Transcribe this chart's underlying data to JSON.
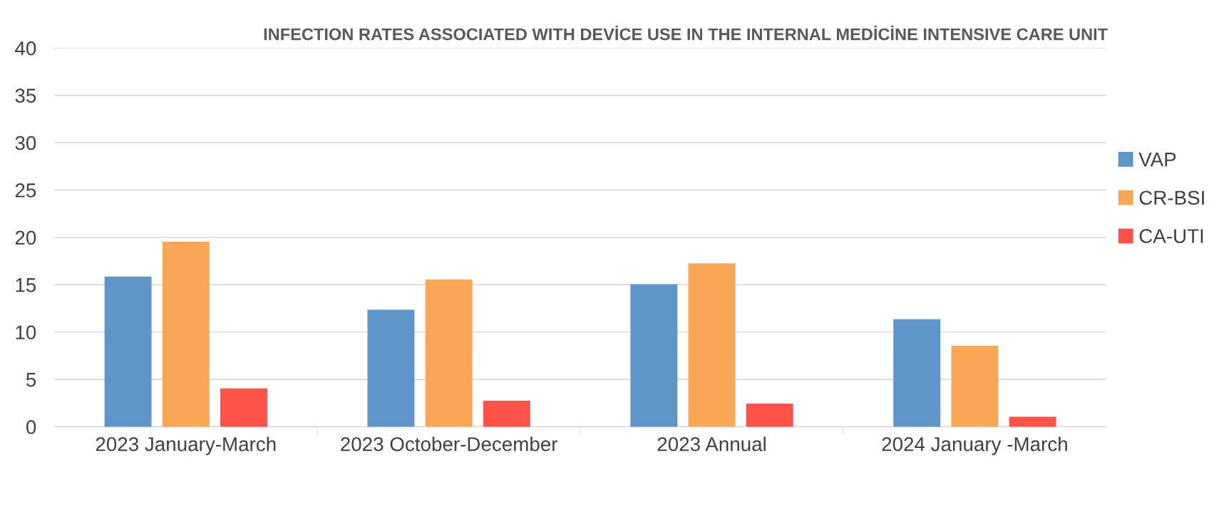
{
  "chart_data": {
    "type": "bar",
    "title": "INFECTION RATES ASSOCIATED WITH DEVİCE USE IN THE INTERNAL MEDİCİNE INTENSIVE CARE UNIT",
    "categories": [
      "2023 January-March",
      "2023 October-December",
      "2023 Annual",
      "2024 January -March"
    ],
    "series": [
      {
        "name": "VAP",
        "color": "#5f95c9",
        "values": [
          15.8,
          12.3,
          15.0,
          11.3
        ]
      },
      {
        "name": "CR-BSI",
        "color": "#f9a757",
        "values": [
          19.5,
          15.5,
          17.2,
          8.5
        ]
      },
      {
        "name": "CA-UTI",
        "color": "#ff5248",
        "values": [
          4.0,
          2.7,
          2.4,
          1.0
        ]
      }
    ],
    "ylim": [
      0,
      40
    ],
    "yticks": [
      0,
      5,
      10,
      15,
      20,
      25,
      30,
      35,
      40
    ],
    "grid": "y",
    "legend": "right"
  }
}
